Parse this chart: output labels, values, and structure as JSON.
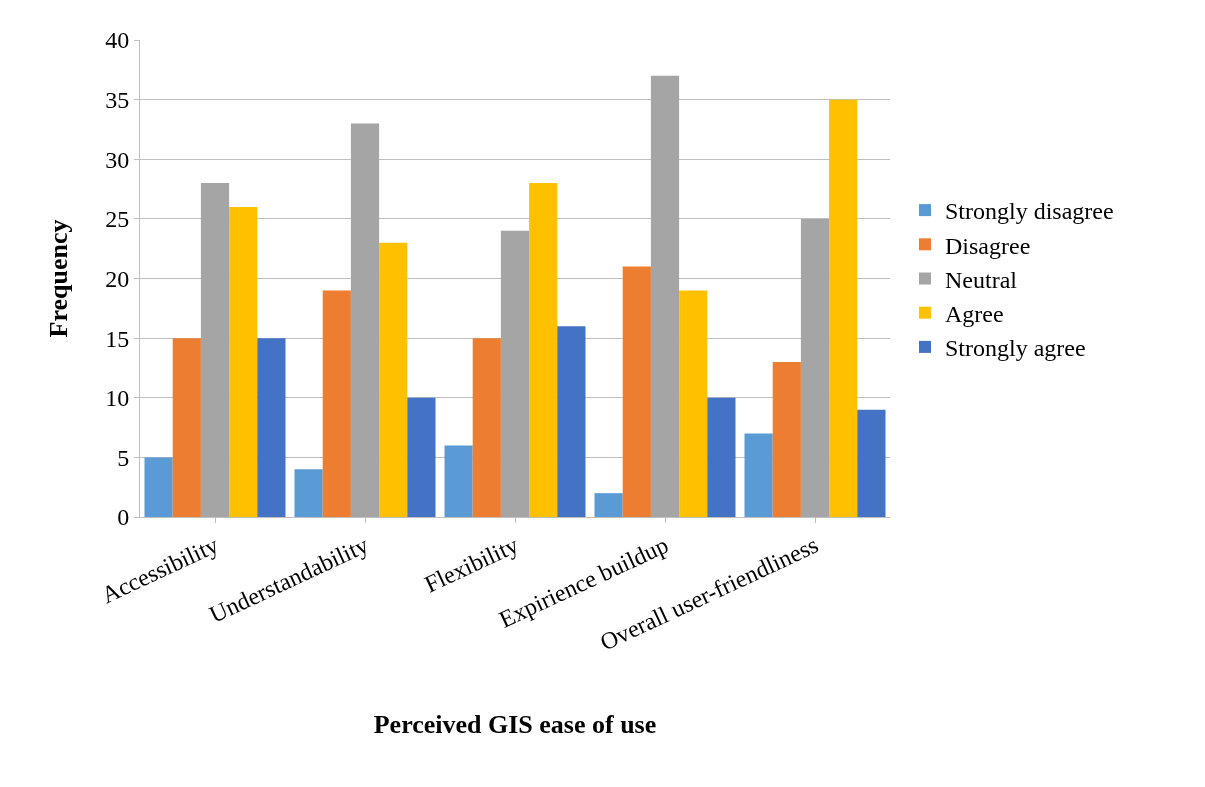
{
  "chart_data": {
    "type": "bar",
    "xlabel": "Perceived GIS ease of use",
    "ylabel": "Frequency",
    "categories": [
      "Accessibility",
      "Understandability",
      "Flexibility",
      "Expirience buildup",
      "Overall user-friendliness"
    ],
    "series": [
      {
        "name": "Strongly disagree",
        "color": "#5b9bd5",
        "values": [
          5,
          4,
          6,
          2,
          7
        ]
      },
      {
        "name": "Disagree",
        "color": "#ed7d31",
        "values": [
          15,
          19,
          15,
          21,
          13
        ]
      },
      {
        "name": "Neutral",
        "color": "#a5a5a5",
        "values": [
          28,
          33,
          24,
          37,
          25
        ]
      },
      {
        "name": "Agree",
        "color": "#ffc000",
        "values": [
          26,
          23,
          28,
          19,
          35
        ]
      },
      {
        "name": "Strongly agree",
        "color": "#4472c4",
        "values": [
          15,
          10,
          16,
          10,
          9
        ]
      }
    ],
    "ylim": [
      0,
      40
    ],
    "yticks": [
      0,
      5,
      10,
      15,
      20,
      25,
      30,
      35,
      40
    ],
    "grid": "y",
    "legend": "right"
  }
}
